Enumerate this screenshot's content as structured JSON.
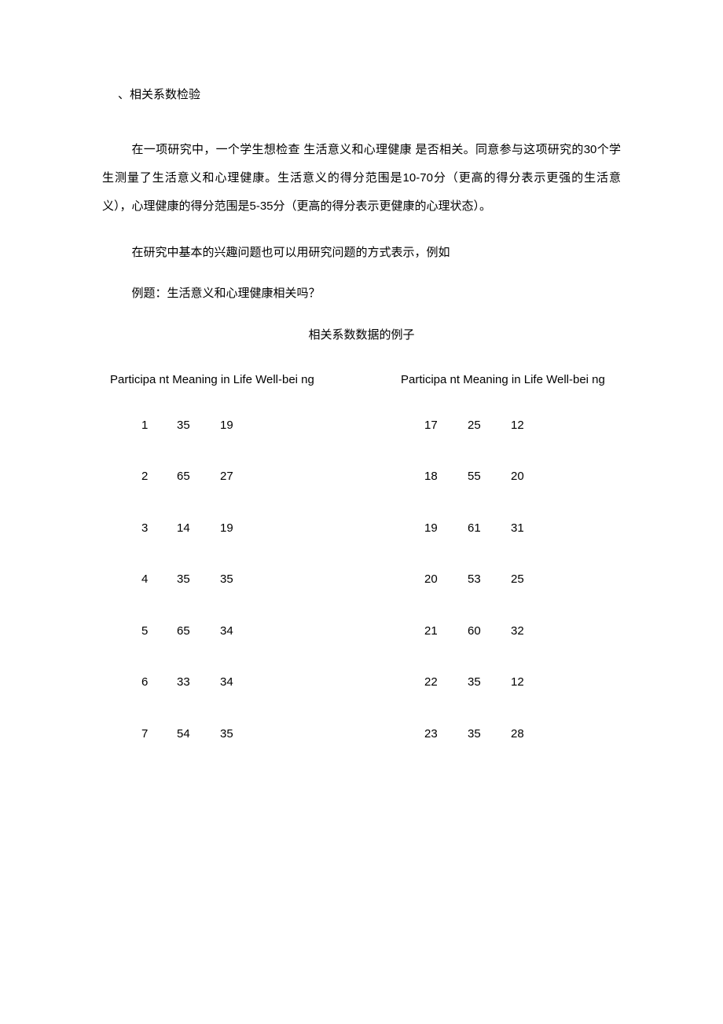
{
  "section_header": "、相关系数检验",
  "para1": "在一项研究中，一个学生想检查 生活意义和心理健康 是否相关。同意参与这项研究的30个学生测量了生活意义和心理健康。生活意义的得分范围是10-70分（更高的得分表示更强的生活意义），心理健康的得分范围是5-35分（更高的得分表示更健康的心理状态）。",
  "para2": "在研究中基本的兴趣问题也可以用研究问题的方式表示，例如",
  "para3": "例题：生活意义和心理健康相关吗？",
  "table_title": "相关系数数据的例子",
  "header_left": "Participa nt Meaning in Life Well-bei ng",
  "header_right": "Participa nt Meaning in Life Well-bei ng",
  "left_rows": [
    {
      "id": "1",
      "v1": "35",
      "v2": "19"
    },
    {
      "id": "2",
      "v1": "65",
      "v2": "27"
    },
    {
      "id": "3",
      "v1": "14",
      "v2": "19"
    },
    {
      "id": "4",
      "v1": "35",
      "v2": "35"
    },
    {
      "id": "5",
      "v1": "65",
      "v2": "34"
    },
    {
      "id": "6",
      "v1": "33",
      "v2": "34"
    },
    {
      "id": "7",
      "v1": "54",
      "v2": "35"
    }
  ],
  "right_rows": [
    {
      "id": "17",
      "v1": "25",
      "v2": "12"
    },
    {
      "id": "18",
      "v1": "55",
      "v2": "20"
    },
    {
      "id": "19",
      "v1": "61",
      "v2": "31"
    },
    {
      "id": "20",
      "v1": "53",
      "v2": "25"
    },
    {
      "id": "21",
      "v1": "60",
      "v2": "32"
    },
    {
      "id": "22",
      "v1": "35",
      "v2": "12"
    },
    {
      "id": "23",
      "v1": "35",
      "v2": "28"
    }
  ]
}
